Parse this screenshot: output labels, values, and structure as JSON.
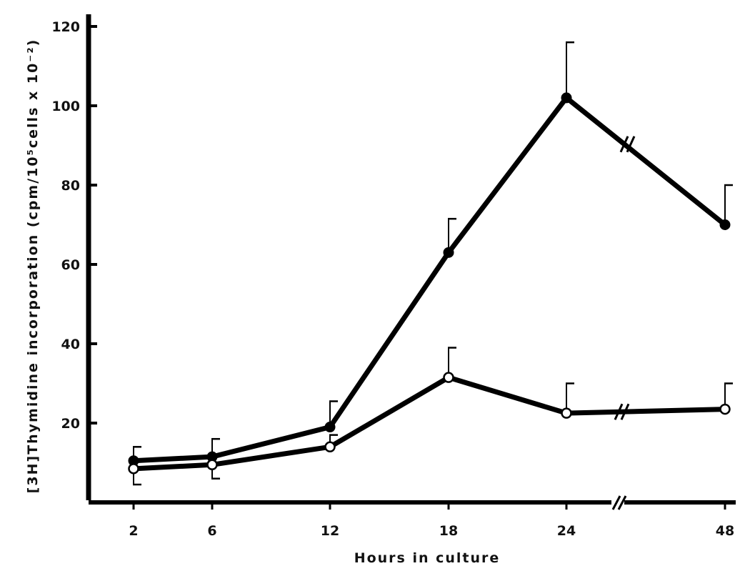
{
  "chart_data": {
    "type": "line",
    "xlabel": "Hours in culture",
    "ylabel": "[3H]Thymidine incorporation (cpm/10⁵cells x 10⁻²)",
    "x_ticks": [
      "2",
      "6",
      "12",
      "18",
      "24",
      "48"
    ],
    "y_ticks": [
      "20",
      "40",
      "60",
      "80",
      "100",
      "120"
    ],
    "ylim": [
      0,
      120
    ],
    "axis_break": "between 24 and 48 hours",
    "grid": false,
    "series": [
      {
        "marker": "filled-circle",
        "x": [
          2,
          6,
          12,
          18,
          24,
          48
        ],
        "values": [
          10.5,
          11.5,
          19,
          63,
          102,
          70
        ],
        "error_upper": [
          14,
          16,
          25.5,
          71.5,
          116,
          80
        ]
      },
      {
        "marker": "open-circle",
        "x": [
          2,
          6,
          12,
          18,
          24,
          48
        ],
        "values": [
          8.5,
          9.5,
          14,
          31.5,
          22.5,
          23.5
        ],
        "error_upper": [
          4.5,
          6,
          17,
          39,
          30,
          30
        ]
      }
    ]
  }
}
